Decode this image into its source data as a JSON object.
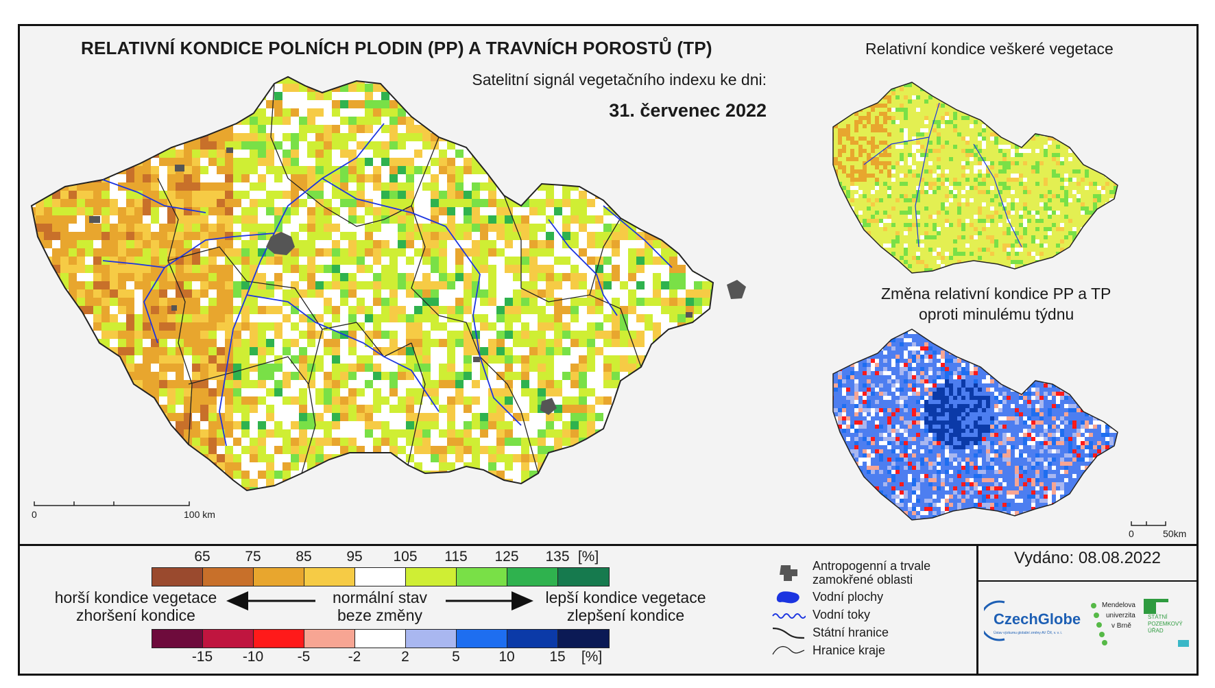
{
  "header": {
    "title": "RELATIVNÍ KONDICE POLNÍCH PLODIN (PP) A TRAVNÍCH POROSTŮ (TP)",
    "subtitle": "Satelitní signál vegetačního indexu ke dni:",
    "date": "31. červenec 2022"
  },
  "right_top": {
    "title": "Relativní kondice veškeré vegetace"
  },
  "right_bottom": {
    "title_line1": "Změna relativní kondice PP a TP",
    "title_line2": "oproti minulému týdnu"
  },
  "main_scale": {
    "start": "0",
    "end": "100 km"
  },
  "small_scale": {
    "start": "0",
    "end": "50km"
  },
  "legend_condition": {
    "ticks": [
      "65",
      "75",
      "85",
      "95",
      "105",
      "115",
      "125",
      "135"
    ],
    "unit": "[%]",
    "colors": [
      "#9a4a2e",
      "#c8702a",
      "#e8a62e",
      "#f6cb45",
      "#ffffff",
      "#cfee34",
      "#79e047",
      "#2fb24e",
      "#167a4e"
    ]
  },
  "legend_change": {
    "ticks": [
      "-15",
      "-10",
      "-5",
      "-2",
      "2",
      "5",
      "10",
      "15"
    ],
    "unit": "[%]",
    "colors": [
      "#6e0b3c",
      "#c0153f",
      "#ff1a1a",
      "#f7a593",
      "#ffffff",
      "#a9b7f0",
      "#1e6ef0",
      "#0b3aa8",
      "#0b1a55"
    ]
  },
  "legend_text": {
    "left_line1": "horší kondice vegetace",
    "left_line2": "zhoršení kondice",
    "mid_line1": "normální stav",
    "mid_line2": "beze změny",
    "right_line1": "lepší kondice vegetace",
    "right_line2": "zlepšení kondice"
  },
  "map_legend": [
    {
      "icon": "urban-area-icon",
      "label_line1": "Antropogenní a trvale",
      "label_line2": "zamokřené oblasti",
      "color": "#555555"
    },
    {
      "icon": "water-body-icon",
      "label_line1": "Vodní plochy",
      "label_line2": "",
      "color": "#1b34e0"
    },
    {
      "icon": "river-icon",
      "label_line1": "Vodní toky",
      "label_line2": "",
      "color": "#1b34e0"
    },
    {
      "icon": "state-border-icon",
      "label_line1": "Státní hranice",
      "label_line2": "",
      "color": "#222222"
    },
    {
      "icon": "region-border-icon",
      "label_line1": "Hranice kraje",
      "label_line2": "",
      "color": "#222222"
    }
  ],
  "issued": {
    "label": "Vydáno: 08.08.2022"
  },
  "logos": {
    "czechglobe": "CzechGlobe",
    "czechglobe_sub": "Ústav výzkumu globální změny AV ČR, v. v. i.",
    "mendelu_line1": "Mendelova",
    "mendelu_line2": "univerzita",
    "mendelu_line3": "v Brně",
    "spu_line1": "STÁTNÍ",
    "spu_line2": "POZEMKOVÝ",
    "spu_line3": "ÚŘAD"
  }
}
